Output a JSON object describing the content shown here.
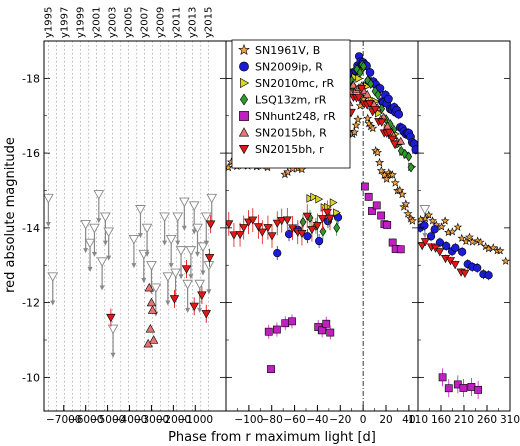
{
  "chart_data": {
    "type": "scatter",
    "ylabel": "red absolute magnitude",
    "xlabel": "Phase from r maximum light [d]",
    "y_inverted": true,
    "ylim": [
      -9.1,
      -19.0
    ],
    "y_ticks": [
      "-18",
      "-16",
      "-14",
      "-12",
      "-10"
    ],
    "y_tick_values": [
      -18,
      -16,
      -14,
      -12,
      -10
    ],
    "legend_position": "top-center",
    "panels": [
      {
        "name": "panel-left",
        "xlim": [
          -7900,
          400
        ],
        "x_ticks": [
          "−7000",
          "−6000",
          "−5000",
          "−4000",
          "−3000",
          "−2000",
          "−1000"
        ],
        "x_tick_values": [
          -7000,
          -6000,
          -5000,
          -4000,
          -3000,
          -2000,
          -1000
        ],
        "top_year_labels": [
          "y1995",
          "y1997",
          "y1999",
          "y2001",
          "y2003",
          "y2005",
          "y2007",
          "y2009",
          "y2011",
          "y2013",
          "y2015"
        ],
        "top_year_values": [
          -7700,
          -6960,
          -6230,
          -5500,
          -4770,
          -4040,
          -3310,
          -2580,
          -1850,
          -1120,
          -390
        ],
        "year_grid_values": [
          -7700,
          -7330,
          -6960,
          -6600,
          -6230,
          -5860,
          -5500,
          -5130,
          -4770,
          -4400,
          -4040,
          -3670,
          -3310,
          -2950,
          -2580,
          -2210,
          -1850,
          -1480,
          -1120,
          -750,
          -390
        ]
      },
      {
        "name": "panel-middle",
        "xlim": [
          -120,
          48
        ],
        "x_ticks": [
          "−100",
          "−80",
          "−60",
          "−40",
          "−20",
          "0",
          "20",
          "40"
        ],
        "x_tick_values": [
          -100,
          -80,
          -60,
          -40,
          -20,
          0,
          20,
          40
        ],
        "vline_at": 0
      },
      {
        "name": "panel-right",
        "xlim": [
          110,
          310
        ],
        "x_ticks": [
          "110",
          "160",
          "210",
          "260",
          "310"
        ],
        "x_tick_values": [
          110,
          160,
          210,
          260,
          310
        ]
      }
    ],
    "series": [
      {
        "name": "SN1961V, B",
        "marker": "star",
        "color": "#f5a243"
      },
      {
        "name": "SN2009ip, R",
        "marker": "circle",
        "color": "#1c1cd6"
      },
      {
        "name": "SN2010mc, rR",
        "marker": "triangle-right",
        "color": "#d9d32b"
      },
      {
        "name": "LSQ13zm, rR",
        "marker": "diamond",
        "color": "#2e9a2e"
      },
      {
        "name": "SNhunt248, rR",
        "marker": "square",
        "color": "#c020c0"
      },
      {
        "name": "SN2015bh, R",
        "marker": "triangle-up",
        "color": "#e87474"
      },
      {
        "name": "SN2015bh, r",
        "marker": "triangle-down",
        "color": "#e01818"
      }
    ],
    "upper_limit_color": "#909090",
    "points": {
      "SN2015bh, R": [
        {
          "x": -3100,
          "y": -12.4
        },
        {
          "x": -3000,
          "y": -12.0
        },
        {
          "x": -2950,
          "y": -11.8
        },
        {
          "x": -3050,
          "y": -11.3
        },
        {
          "x": -2900,
          "y": -11.0
        },
        {
          "x": -3150,
          "y": -10.9
        }
      ],
      "SN2015bh, r": [
        {
          "x": -4850,
          "y": -11.6
        },
        {
          "x": -1950,
          "y": -12.1
        },
        {
          "x": -1400,
          "y": -12.9
        },
        {
          "x": -1050,
          "y": -11.9
        },
        {
          "x": -700,
          "y": -12.2
        },
        {
          "x": -500,
          "y": -11.7
        },
        {
          "x": -350,
          "y": -13.2
        },
        {
          "x": -300,
          "y": -14.1
        }
      ],
      "upper_limits": [
        {
          "x": -7700,
          "y": -14.8
        },
        {
          "x": -7500,
          "y": -12.7
        },
        {
          "x": -6000,
          "y": -14.1
        },
        {
          "x": -5800,
          "y": -13.6
        },
        {
          "x": -5600,
          "y": -14.0
        },
        {
          "x": -5400,
          "y": -14.9
        },
        {
          "x": -5250,
          "y": -13.1
        },
        {
          "x": -5100,
          "y": -14.3
        },
        {
          "x": -4950,
          "y": -13.9
        },
        {
          "x": -4750,
          "y": -11.3
        },
        {
          "x": -3800,
          "y": -13.7
        },
        {
          "x": -3500,
          "y": -14.5
        },
        {
          "x": -3350,
          "y": -13.3
        },
        {
          "x": -3200,
          "y": -14.0
        },
        {
          "x": -3000,
          "y": -13.0
        },
        {
          "x": -2800,
          "y": -12.4
        },
        {
          "x": -2400,
          "y": -14.3
        },
        {
          "x": -2250,
          "y": -12.7
        },
        {
          "x": -2100,
          "y": -13.7
        },
        {
          "x": -1900,
          "y": -12.8
        },
        {
          "x": -1800,
          "y": -14.3
        },
        {
          "x": -1650,
          "y": -13.4
        },
        {
          "x": -1500,
          "y": -14.7
        },
        {
          "x": -1350,
          "y": -12.5
        },
        {
          "x": -1200,
          "y": -13.4
        },
        {
          "x": -1050,
          "y": -14.6
        },
        {
          "x": -900,
          "y": -14.0
        },
        {
          "x": -800,
          "y": -12.5
        },
        {
          "x": -650,
          "y": -13.5
        },
        {
          "x": -500,
          "y": -14.3
        },
        {
          "x": -380,
          "y": -13.0
        },
        {
          "x": -250,
          "y": -14.8
        },
        {
          "x": 125,
          "y": -14.5
        }
      ]
    }
  }
}
